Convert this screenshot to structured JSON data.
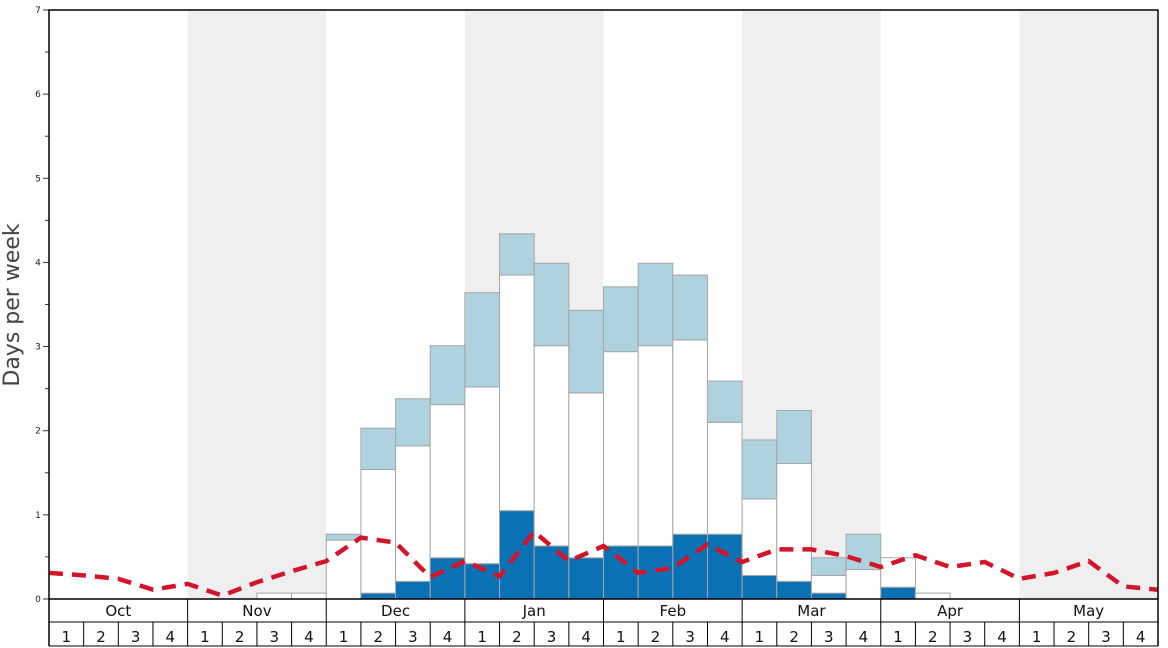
{
  "chart_data": {
    "type": "bar",
    "ylabel": "Days per week",
    "ylim": [
      0,
      7
    ],
    "yticks": [
      0,
      1,
      2,
      3,
      4,
      5,
      6,
      7
    ],
    "months": [
      "Oct",
      "Nov",
      "Dec",
      "Jan",
      "Feb",
      "Mar",
      "Apr",
      "May"
    ],
    "weeks": [
      "1",
      "2",
      "3",
      "4"
    ],
    "shaded_months": [
      "Nov",
      "Jan",
      "Mar",
      "May"
    ],
    "stacked": true,
    "series": [
      {
        "key": "dark",
        "values": [
          0,
          0,
          0,
          0,
          0,
          0,
          0,
          0,
          0,
          0.07,
          0.21,
          0.49,
          0.42,
          1.05,
          0.63,
          0.49,
          0.63,
          0.63,
          0.77,
          0.77,
          0.28,
          0.21,
          0.07,
          0,
          0.14,
          0,
          0,
          0,
          0,
          0,
          0,
          0
        ]
      },
      {
        "key": "white",
        "values": [
          0,
          0,
          0,
          0,
          0,
          0,
          0.07,
          0.07,
          0.7,
          1.47,
          1.61,
          1.82,
          2.1,
          2.8,
          2.38,
          1.96,
          2.31,
          2.38,
          2.31,
          1.33,
          0.91,
          1.4,
          0.21,
          0.35,
          0.35,
          0.07,
          0,
          0,
          0,
          0,
          0,
          0
        ]
      },
      {
        "key": "light",
        "values": [
          0,
          0,
          0,
          0,
          0,
          0,
          0,
          0,
          0.07,
          0.49,
          0.56,
          0.7,
          1.12,
          0.49,
          0.98,
          0.98,
          0.77,
          0.98,
          0.77,
          0.49,
          0.7,
          0.63,
          0.21,
          0.42,
          0,
          0,
          0,
          0,
          0,
          0,
          0,
          0
        ]
      }
    ],
    "line": {
      "style": "dashed",
      "values": [
        0.31,
        0.28,
        0.24,
        0.11,
        0.18,
        0.04,
        0.2,
        0.33,
        0.45,
        0.73,
        0.67,
        0.26,
        0.45,
        0.27,
        0.8,
        0.45,
        0.63,
        0.31,
        0.37,
        0.65,
        0.44,
        0.59,
        0.59,
        0.51,
        0.38,
        0.52,
        0.38,
        0.44,
        0.24,
        0.31,
        0.45,
        0.15,
        0.11
      ]
    },
    "colors": {
      "dark": "#0a72b4",
      "white": "#ffffff",
      "light": "#aed3df",
      "bar_stroke": "#a6a6a6",
      "line": "#d2152b",
      "shade": "#efefef"
    }
  }
}
